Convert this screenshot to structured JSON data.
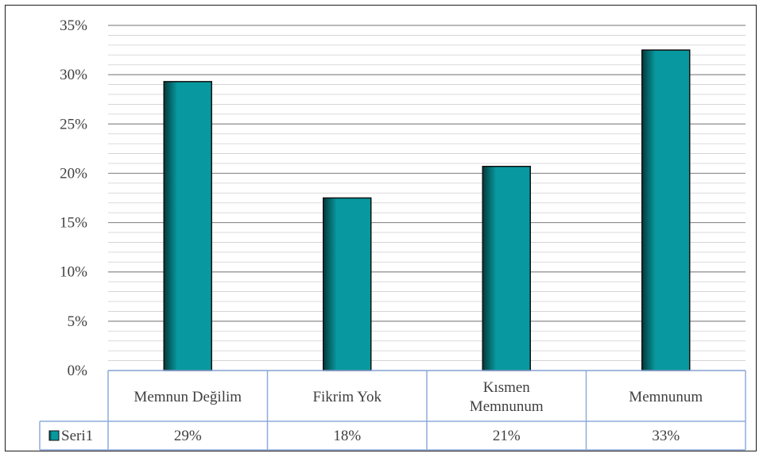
{
  "chart_data": {
    "type": "bar",
    "categories": [
      "Memnun Değilim",
      "Fikrim Yok",
      "Kısmen\nMemnunum",
      "Memnunum"
    ],
    "series": [
      {
        "name": "Seri1",
        "values": [
          0.293,
          0.175,
          0.207,
          0.325
        ],
        "labels": [
          "29%",
          "18%",
          "21%",
          "33%"
        ],
        "color": "#07999f"
      }
    ],
    "yticks": [
      "0%",
      "5%",
      "10%",
      "15%",
      "20%",
      "25%",
      "30%",
      "35%"
    ],
    "ylim": [
      0,
      0.35
    ],
    "grid": true,
    "legend": "data-table",
    "colors": {
      "bar": "#07999f",
      "bar_dark": "#04393b",
      "grid_major": "#8c8c8c",
      "grid_minor": "#cfcfcf",
      "table": "#8eaadb"
    }
  }
}
